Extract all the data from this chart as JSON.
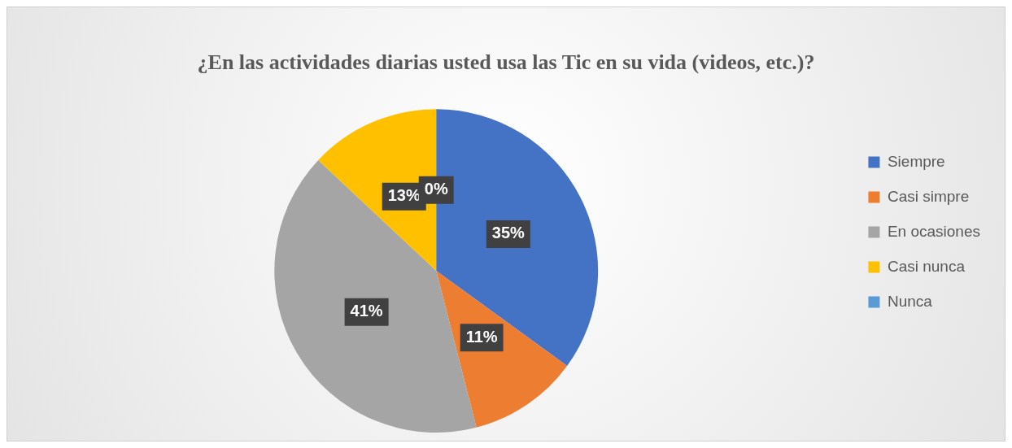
{
  "chart_data": {
    "type": "pie",
    "title": "¿En las actividades diarias usted usa las Tic en su vida (videos, etc.)?",
    "categories": [
      "Siempre",
      "Casi simpre",
      "En ocasiones",
      "Casi nunca",
      "Nunca"
    ],
    "values": [
      35,
      11,
      41,
      13,
      0
    ],
    "colors": [
      "#4472c4",
      "#ed7d31",
      "#a5a5a5",
      "#ffc000",
      "#5b9bd5"
    ],
    "value_labels": [
      "35%",
      "11%",
      "41%",
      "13%",
      "0%"
    ],
    "legend": "right"
  }
}
